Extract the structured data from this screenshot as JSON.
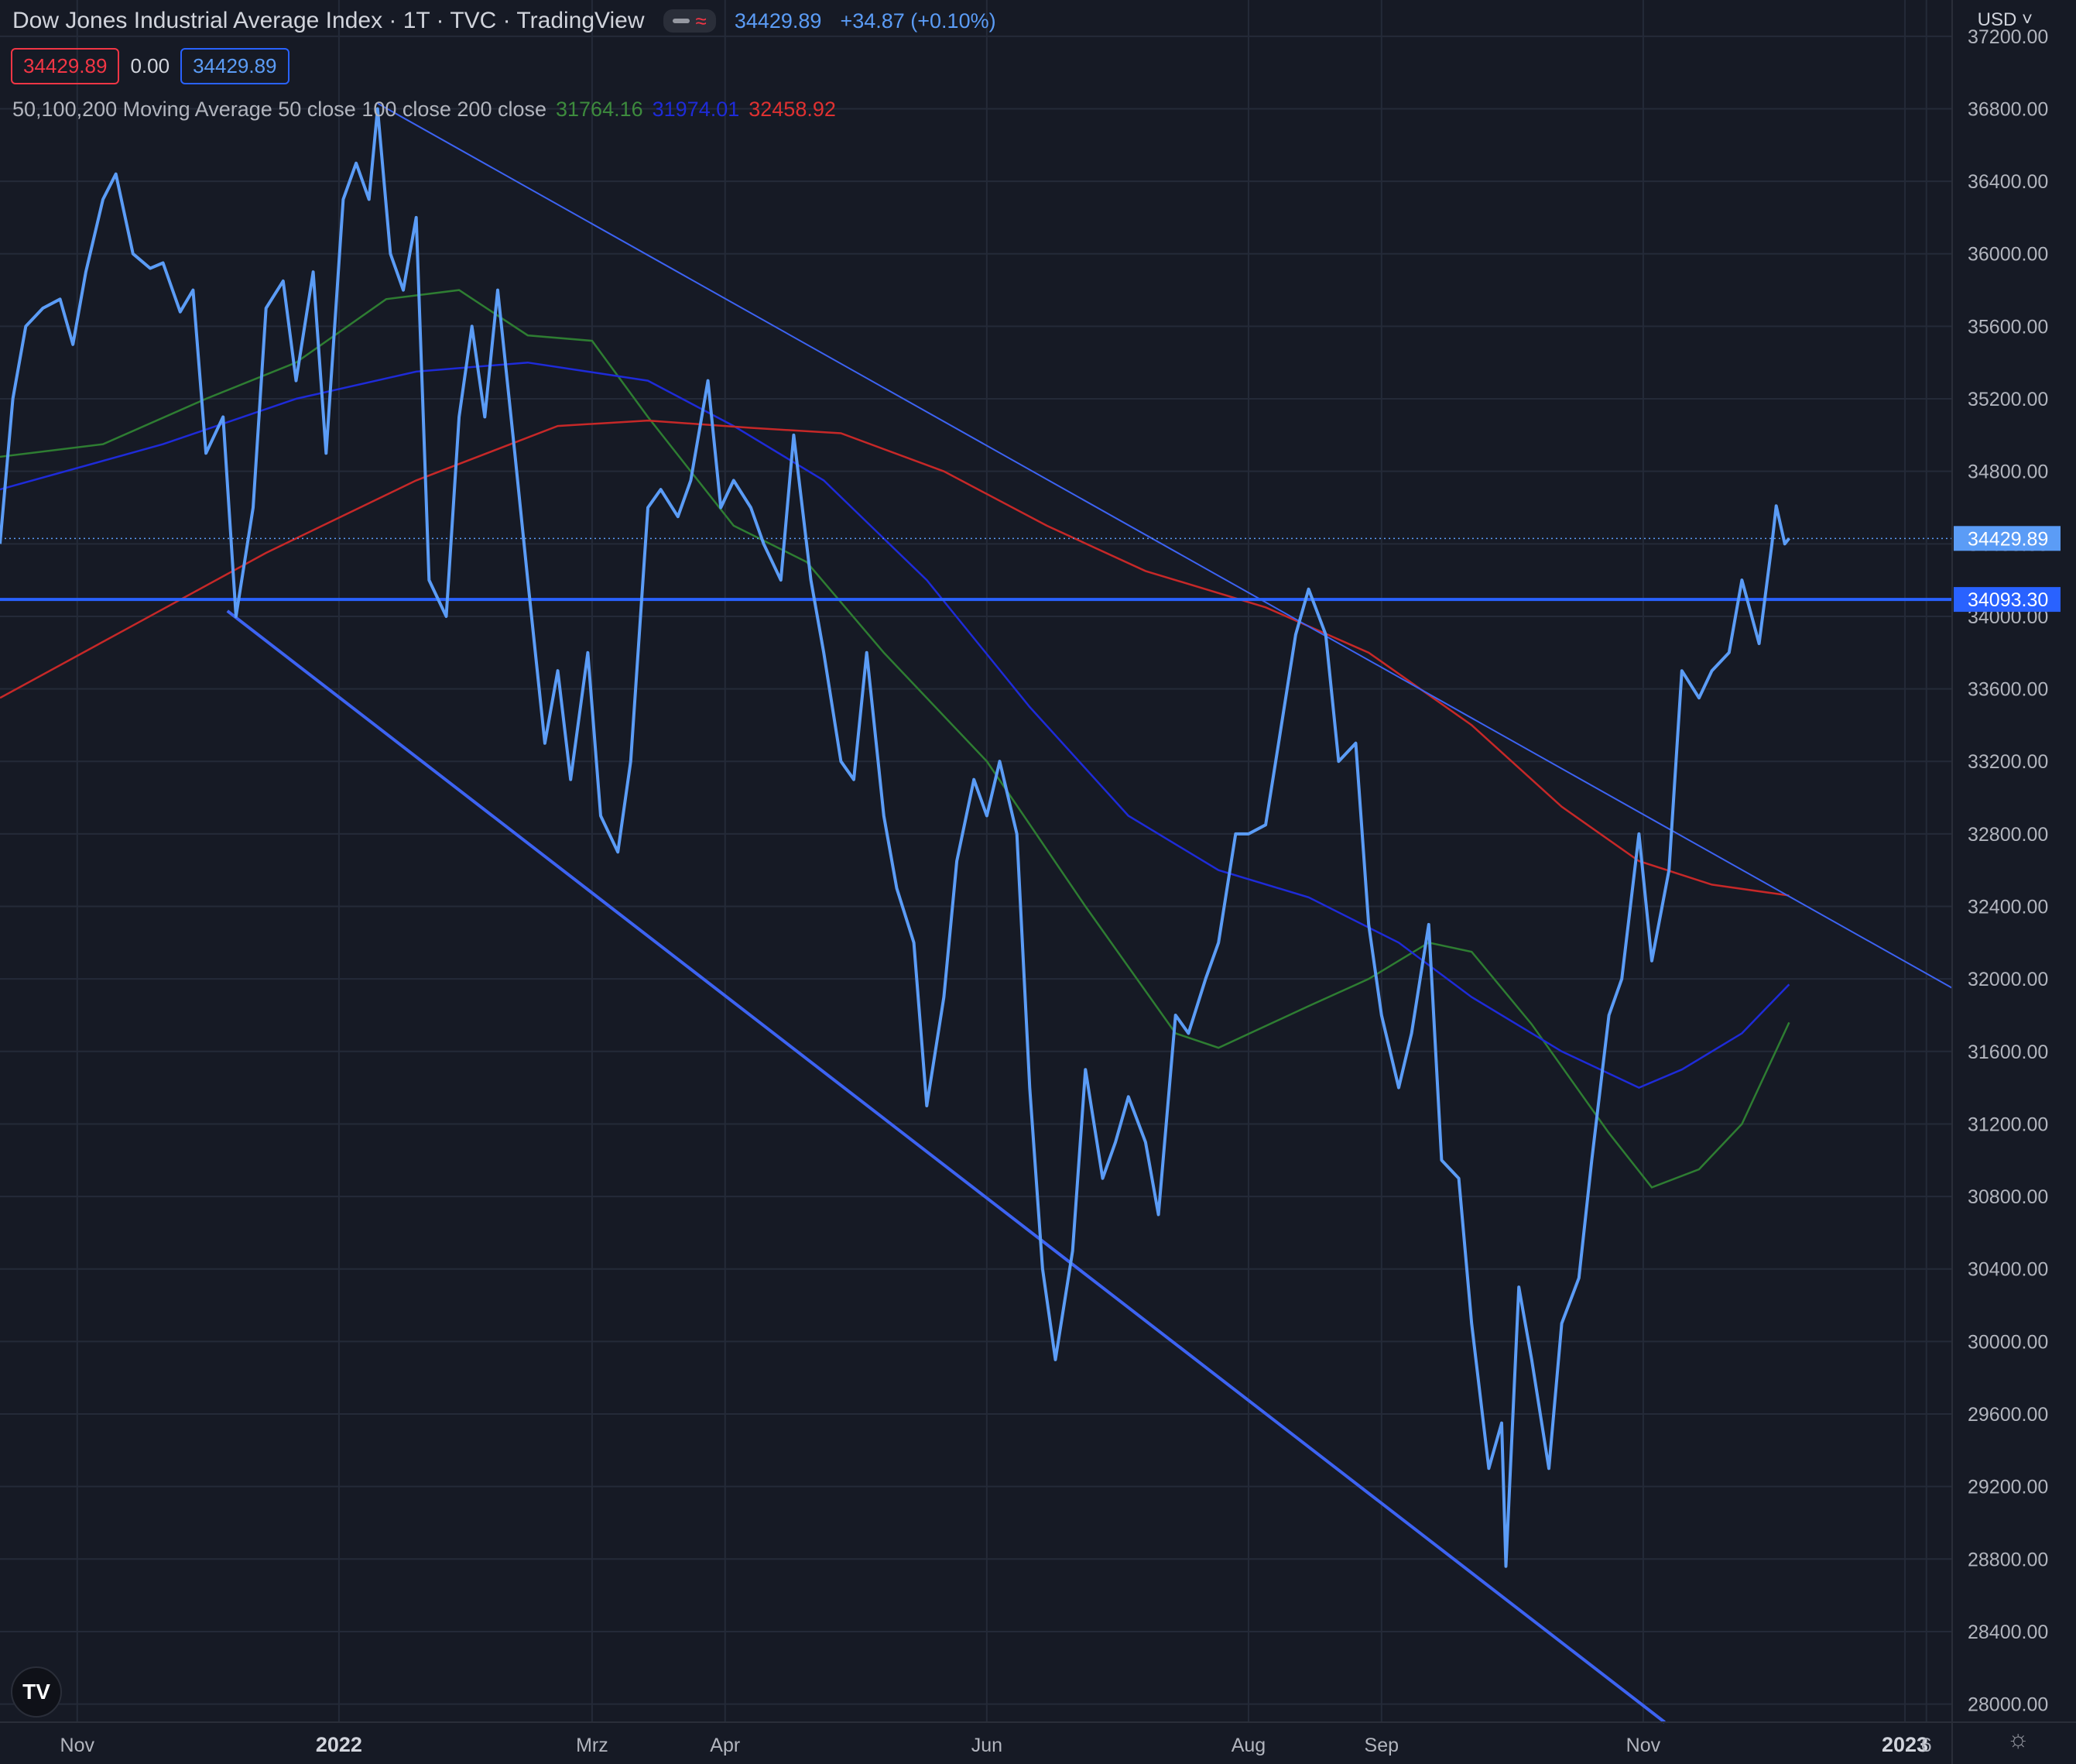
{
  "header": {
    "title": "Dow Jones Industrial Average Index · 1T · TVC · TradingView",
    "last_price": "34429.89",
    "change": "+34.87 (+0.10%)"
  },
  "ohlc": {
    "sell": "34429.89",
    "spread": "0.00",
    "buy": "34429.89"
  },
  "indicator": {
    "label": "50,100,200 Moving Average 50 close 100 close 200 close",
    "ma50": "31764.16",
    "ma100": "31974.01",
    "ma200": "32458.92"
  },
  "currency": "USD",
  "colors": {
    "background": "#161a25",
    "price": "#5b9cf6",
    "trendline": "#3d63f2",
    "ma50": "#2e7d32",
    "ma100": "#1e2bd8",
    "ma200": "#c62828",
    "grid": "#242a38",
    "axis_text": "#b2b5be"
  },
  "chart_data": {
    "type": "line",
    "ylim": [
      27900,
      37400
    ],
    "y_ticks": [
      28000,
      28400,
      28800,
      29200,
      29600,
      30000,
      30400,
      30800,
      31200,
      31600,
      32000,
      32400,
      32800,
      33200,
      33600,
      34000,
      34400,
      34800,
      35200,
      35600,
      36000,
      36400,
      36800,
      37200
    ],
    "x_labels": [
      {
        "date": "2021-11-01",
        "label": "Nov",
        "bold": false
      },
      {
        "date": "2022-01-01",
        "label": "2022",
        "bold": true
      },
      {
        "date": "2022-03-01",
        "label": "Mrz",
        "bold": false
      },
      {
        "date": "2022-04-01",
        "label": "Apr",
        "bold": false
      },
      {
        "date": "2022-06-01",
        "label": "Jun",
        "bold": false
      },
      {
        "date": "2022-08-01",
        "label": "Aug",
        "bold": false
      },
      {
        "date": "2022-09-01",
        "label": "Sep",
        "bold": false
      },
      {
        "date": "2022-11-01",
        "label": "Nov",
        "bold": false
      },
      {
        "date": "2023-01-01",
        "label": "2023",
        "bold": true
      },
      {
        "date": "2023-01-06",
        "label": "6",
        "bold": false
      }
    ],
    "x_range": [
      "2021-10-14",
      "2023-01-12"
    ],
    "series": [
      {
        "values": [
          [
            "2021-10-14",
            34400
          ],
          [
            "2021-10-17",
            35200
          ],
          [
            "2021-10-20",
            35600
          ],
          [
            "2021-10-24",
            35700
          ],
          [
            "2021-10-28",
            35750
          ],
          [
            "2021-10-31",
            35500
          ],
          [
            "2021-11-03",
            35900
          ],
          [
            "2021-11-07",
            36300
          ],
          [
            "2021-11-10",
            36440
          ],
          [
            "2021-11-14",
            36000
          ],
          [
            "2021-11-18",
            35920
          ],
          [
            "2021-11-21",
            35950
          ],
          [
            "2021-11-25",
            35680
          ],
          [
            "2021-11-28",
            35800
          ],
          [
            "2021-12-01",
            34900
          ],
          [
            "2021-12-05",
            35100
          ],
          [
            "2021-12-08",
            34000
          ],
          [
            "2021-12-12",
            34600
          ],
          [
            "2021-12-15",
            35700
          ],
          [
            "2021-12-19",
            35850
          ],
          [
            "2021-12-22",
            35300
          ],
          [
            "2021-12-26",
            35900
          ],
          [
            "2021-12-29",
            34900
          ],
          [
            "2022-01-02",
            36300
          ],
          [
            "2022-01-05",
            36500
          ],
          [
            "2022-01-08",
            36300
          ],
          [
            "2022-01-10",
            36800
          ],
          [
            "2022-01-13",
            36000
          ],
          [
            "2022-01-16",
            35800
          ],
          [
            "2022-01-19",
            36200
          ],
          [
            "2022-01-22",
            34200
          ],
          [
            "2022-01-26",
            34000
          ],
          [
            "2022-01-29",
            35100
          ],
          [
            "2022-02-01",
            35600
          ],
          [
            "2022-02-04",
            35100
          ],
          [
            "2022-02-07",
            35800
          ],
          [
            "2022-02-11",
            34900
          ],
          [
            "2022-02-14",
            34200
          ],
          [
            "2022-02-18",
            33300
          ],
          [
            "2022-02-21",
            33700
          ],
          [
            "2022-02-24",
            33100
          ],
          [
            "2022-02-28",
            33800
          ],
          [
            "2022-03-03",
            32900
          ],
          [
            "2022-03-07",
            32700
          ],
          [
            "2022-03-10",
            33200
          ],
          [
            "2022-03-14",
            34600
          ],
          [
            "2022-03-17",
            34700
          ],
          [
            "2022-03-21",
            34550
          ],
          [
            "2022-03-24",
            34750
          ],
          [
            "2022-03-28",
            35300
          ],
          [
            "2022-03-31",
            34600
          ],
          [
            "2022-04-03",
            34750
          ],
          [
            "2022-04-07",
            34600
          ],
          [
            "2022-04-10",
            34400
          ],
          [
            "2022-04-14",
            34200
          ],
          [
            "2022-04-17",
            35000
          ],
          [
            "2022-04-21",
            34200
          ],
          [
            "2022-04-24",
            33800
          ],
          [
            "2022-04-28",
            33200
          ],
          [
            "2022-05-01",
            33100
          ],
          [
            "2022-05-04",
            33800
          ],
          [
            "2022-05-08",
            32900
          ],
          [
            "2022-05-11",
            32500
          ],
          [
            "2022-05-15",
            32200
          ],
          [
            "2022-05-18",
            31300
          ],
          [
            "2022-05-22",
            31900
          ],
          [
            "2022-05-25",
            32650
          ],
          [
            "2022-05-29",
            33100
          ],
          [
            "2022-06-01",
            32900
          ],
          [
            "2022-06-04",
            33200
          ],
          [
            "2022-06-08",
            32800
          ],
          [
            "2022-06-11",
            31400
          ],
          [
            "2022-06-14",
            30400
          ],
          [
            "2022-06-17",
            29900
          ],
          [
            "2022-06-21",
            30500
          ],
          [
            "2022-06-24",
            31500
          ],
          [
            "2022-06-28",
            30900
          ],
          [
            "2022-07-01",
            31100
          ],
          [
            "2022-07-04",
            31350
          ],
          [
            "2022-07-08",
            31100
          ],
          [
            "2022-07-11",
            30700
          ],
          [
            "2022-07-15",
            31800
          ],
          [
            "2022-07-18",
            31700
          ],
          [
            "2022-07-22",
            32000
          ],
          [
            "2022-07-25",
            32200
          ],
          [
            "2022-07-29",
            32800
          ],
          [
            "2022-08-01",
            32800
          ],
          [
            "2022-08-05",
            32850
          ],
          [
            "2022-08-08",
            33300
          ],
          [
            "2022-08-12",
            33900
          ],
          [
            "2022-08-15",
            34150
          ],
          [
            "2022-08-19",
            33900
          ],
          [
            "2022-08-22",
            33200
          ],
          [
            "2022-08-26",
            33300
          ],
          [
            "2022-08-29",
            32300
          ],
          [
            "2022-09-01",
            31800
          ],
          [
            "2022-09-05",
            31400
          ],
          [
            "2022-09-08",
            31700
          ],
          [
            "2022-09-12",
            32300
          ],
          [
            "2022-09-15",
            31000
          ],
          [
            "2022-09-19",
            30900
          ],
          [
            "2022-09-22",
            30100
          ],
          [
            "2022-09-26",
            29300
          ],
          [
            "2022-09-29",
            29550
          ],
          [
            "2022-09-30",
            28760
          ],
          [
            "2022-10-03",
            30300
          ],
          [
            "2022-10-06",
            29900
          ],
          [
            "2022-10-10",
            29300
          ],
          [
            "2022-10-13",
            30100
          ],
          [
            "2022-10-17",
            30350
          ],
          [
            "2022-10-20",
            31000
          ],
          [
            "2022-10-24",
            31800
          ],
          [
            "2022-10-27",
            32000
          ],
          [
            "2022-10-31",
            32800
          ],
          [
            "2022-11-03",
            32100
          ],
          [
            "2022-11-07",
            32600
          ],
          [
            "2022-11-10",
            33700
          ],
          [
            "2022-11-14",
            33550
          ],
          [
            "2022-11-17",
            33700
          ],
          [
            "2022-11-21",
            33800
          ],
          [
            "2022-11-24",
            34200
          ],
          [
            "2022-11-28",
            33850
          ],
          [
            "2022-12-01",
            34400
          ],
          [
            "2022-12-02",
            34610
          ],
          [
            "2022-12-04",
            34400
          ],
          [
            "2022-12-05",
            34430
          ]
        ]
      },
      {
        "ma": "ma50",
        "values": [
          [
            "2021-10-14",
            34880
          ],
          [
            "2021-11-07",
            34950
          ],
          [
            "2021-12-01",
            35200
          ],
          [
            "2021-12-22",
            35400
          ],
          [
            "2022-01-12",
            35750
          ],
          [
            "2022-01-29",
            35800
          ],
          [
            "2022-02-14",
            35550
          ],
          [
            "2022-03-01",
            35520
          ],
          [
            "2022-03-14",
            35100
          ],
          [
            "2022-04-03",
            34500
          ],
          [
            "2022-04-20",
            34300
          ],
          [
            "2022-05-08",
            33800
          ],
          [
            "2022-06-01",
            33200
          ],
          [
            "2022-06-24",
            32400
          ],
          [
            "2022-07-15",
            31700
          ],
          [
            "2022-07-25",
            31620
          ],
          [
            "2022-08-15",
            31850
          ],
          [
            "2022-08-29",
            32000
          ],
          [
            "2022-09-12",
            32200
          ],
          [
            "2022-09-22",
            32150
          ],
          [
            "2022-10-06",
            31750
          ],
          [
            "2022-10-24",
            31150
          ],
          [
            "2022-11-03",
            30850
          ],
          [
            "2022-11-14",
            30950
          ],
          [
            "2022-11-24",
            31200
          ],
          [
            "2022-12-05",
            31760
          ]
        ]
      },
      {
        "ma": "ma100",
        "values": [
          [
            "2021-10-14",
            34700
          ],
          [
            "2021-11-21",
            34950
          ],
          [
            "2021-12-22",
            35200
          ],
          [
            "2022-01-19",
            35350
          ],
          [
            "2022-02-14",
            35400
          ],
          [
            "2022-03-14",
            35300
          ],
          [
            "2022-04-03",
            35050
          ],
          [
            "2022-04-24",
            34750
          ],
          [
            "2022-05-18",
            34200
          ],
          [
            "2022-06-11",
            33500
          ],
          [
            "2022-07-04",
            32900
          ],
          [
            "2022-07-25",
            32600
          ],
          [
            "2022-08-15",
            32450
          ],
          [
            "2022-09-05",
            32200
          ],
          [
            "2022-09-22",
            31900
          ],
          [
            "2022-10-13",
            31600
          ],
          [
            "2022-10-31",
            31400
          ],
          [
            "2022-11-10",
            31500
          ],
          [
            "2022-11-24",
            31700
          ],
          [
            "2022-12-05",
            31970
          ]
        ]
      },
      {
        "ma": "ma200",
        "values": [
          [
            "2021-10-14",
            33550
          ],
          [
            "2021-11-14",
            33950
          ],
          [
            "2021-12-15",
            34350
          ],
          [
            "2022-01-19",
            34750
          ],
          [
            "2022-02-21",
            35050
          ],
          [
            "2022-03-14",
            35080
          ],
          [
            "2022-04-07",
            35040
          ],
          [
            "2022-04-28",
            35010
          ],
          [
            "2022-05-22",
            34800
          ],
          [
            "2022-06-15",
            34500
          ],
          [
            "2022-07-08",
            34250
          ],
          [
            "2022-08-05",
            34050
          ],
          [
            "2022-08-29",
            33800
          ],
          [
            "2022-09-22",
            33400
          ],
          [
            "2022-10-13",
            32950
          ],
          [
            "2022-10-31",
            32650
          ],
          [
            "2022-11-17",
            32520
          ],
          [
            "2022-12-05",
            32460
          ]
        ]
      }
    ],
    "trendlines": [
      {
        "from": [
          "2022-01-10",
          36830
        ],
        "to": [
          "2023-01-12",
          31950
        ],
        "width": 2
      },
      {
        "from": [
          "2021-12-06",
          34030
        ],
        "to": [
          "2022-11-06",
          27900
        ],
        "width": 4
      }
    ],
    "horizontal_line": {
      "value": 34093.3,
      "label": "34093.30"
    },
    "last_value": {
      "value": 34429.89,
      "label": "34429.89"
    }
  }
}
